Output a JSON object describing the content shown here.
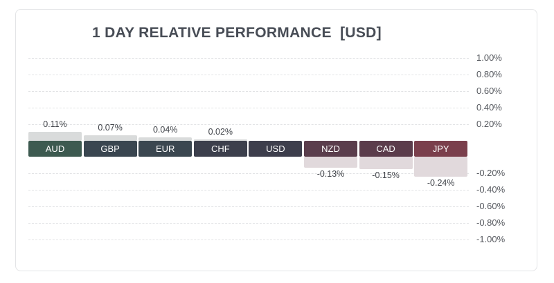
{
  "chart_data": {
    "type": "bar",
    "title": "1 DAY RELATIVE PERFORMANCE  [USD]",
    "xlabel": "",
    "ylabel": "",
    "ylim": [
      -1.0,
      1.0
    ],
    "grid": true,
    "categories": [
      "AUD",
      "GBP",
      "EUR",
      "CHF",
      "USD",
      "NZD",
      "CAD",
      "JPY"
    ],
    "values": [
      0.11,
      0.07,
      0.04,
      0.02,
      0,
      -0.13,
      -0.15,
      -0.24
    ],
    "value_labels": [
      "0.11%",
      "0.07%",
      "0.04%",
      "0.02%",
      "",
      "-0.13%",
      "-0.15%",
      "-0.24%"
    ],
    "category_colors": [
      "#3d5a50",
      "#3a4650",
      "#3b4750",
      "#3c3f4c",
      "#3d3e4c",
      "#5a3d4c",
      "#5b3c4b",
      "#7a3f4c"
    ],
    "positive_bar_color": "#d9dbdb",
    "negative_bar_color": "#e1d9dc",
    "yticks_positive": [
      1.0,
      0.8,
      0.6,
      0.4,
      0.2
    ],
    "yticks_negative": [
      -0.2,
      -0.4,
      -0.6,
      -0.8,
      -1.0
    ],
    "ytick_labels": {
      "1.0": "1.00%",
      "0.8": "0.80%",
      "0.6": "0.60%",
      "0.4": "0.40%",
      "0.2": "0.20%",
      "-0.2": "-0.20%",
      "-0.4": "-0.40%",
      "-0.6": "-0.60%",
      "-0.8": "-0.80%",
      "-1.0": "-1.00%"
    }
  }
}
